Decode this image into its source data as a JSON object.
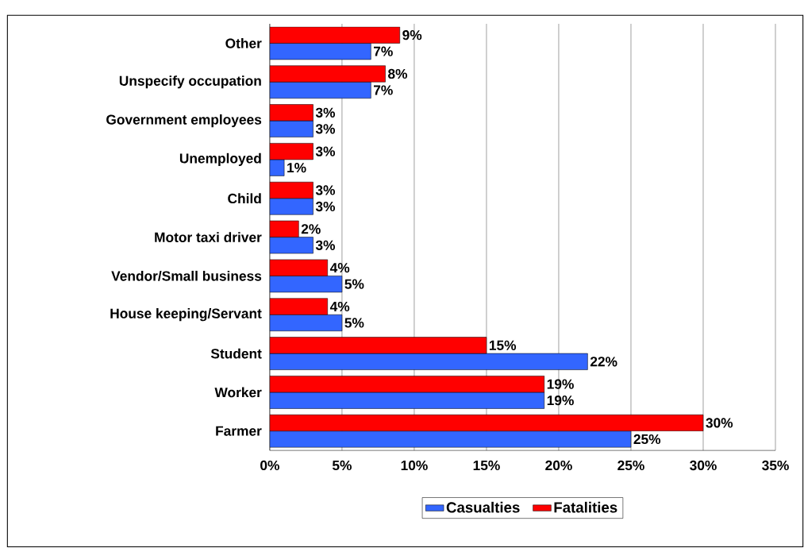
{
  "chart_data": {
    "type": "bar",
    "orientation": "horizontal",
    "categories": [
      "Other",
      "Unspecify occupation",
      "Government employees",
      "Unemployed",
      "Child",
      "Motor taxi driver",
      "Vendor/Small business",
      "House keeping/Servant",
      "Student",
      "Worker",
      "Farmer"
    ],
    "series": [
      {
        "name": "Casualties",
        "color": "#3366ff",
        "values": [
          7,
          7,
          3,
          1,
          3,
          3,
          5,
          5,
          22,
          19,
          25
        ],
        "value_labels": [
          "7%",
          "7%",
          "3%",
          "1%",
          "3%",
          "3%",
          "5%",
          "5%",
          "22%",
          "19%",
          "25%"
        ]
      },
      {
        "name": "Fatalities",
        "color": "#ff0000",
        "values": [
          9,
          8,
          3,
          3,
          3,
          2,
          4,
          4,
          15,
          19,
          30
        ],
        "value_labels": [
          "9%",
          "8%",
          "3%",
          "3%",
          "3%",
          "2%",
          "4%",
          "4%",
          "15%",
          "19%",
          "30%"
        ]
      }
    ],
    "xlim": [
      0,
      35
    ],
    "xticks": [
      {
        "value": 0,
        "label": "0%"
      },
      {
        "value": 5,
        "label": "5%"
      },
      {
        "value": 10,
        "label": "10%"
      },
      {
        "value": 15,
        "label": "15%"
      },
      {
        "value": 20,
        "label": "20%"
      },
      {
        "value": 25,
        "label": "25%"
      },
      {
        "value": 30,
        "label": "30%"
      },
      {
        "value": 35,
        "label": "35%"
      }
    ],
    "grid": "x",
    "legend": "bottom"
  }
}
